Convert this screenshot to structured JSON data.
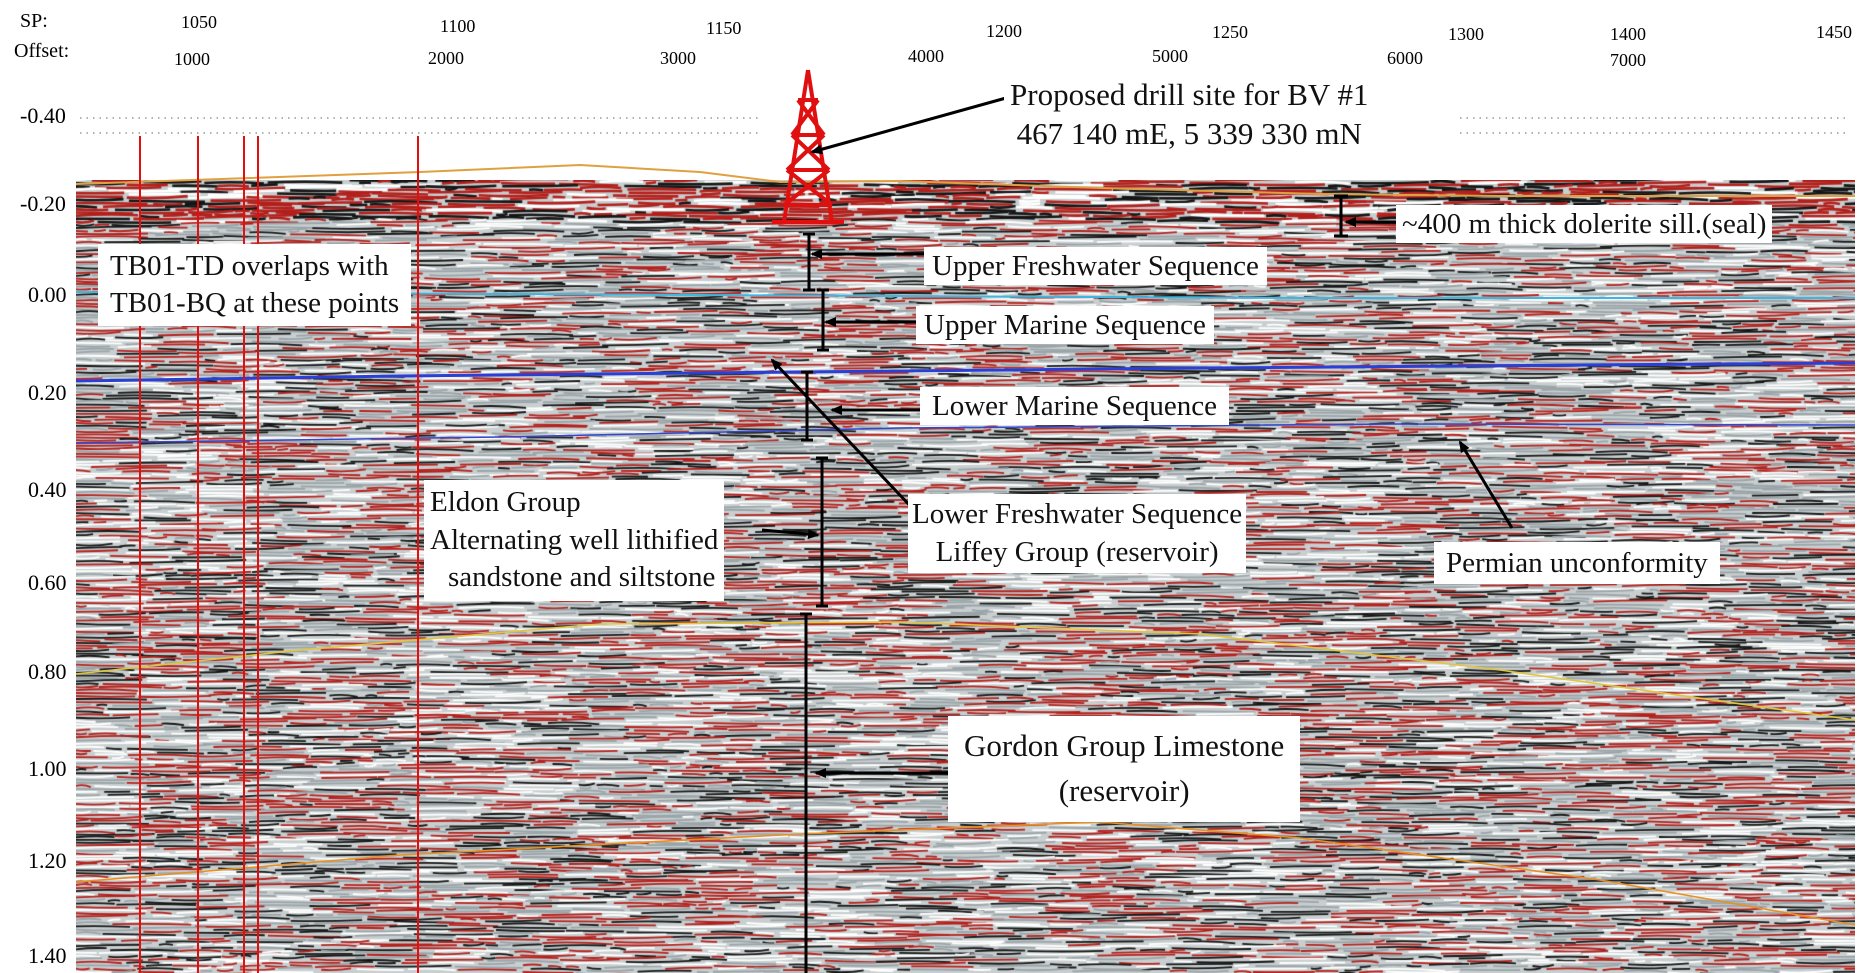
{
  "axis": {
    "sp_label": "SP:",
    "offset_label": "Offset:",
    "sp_ticks": [
      "1050",
      "1100",
      "1150",
      "1200",
      "1250",
      "1300",
      "1400",
      "1450"
    ],
    "offset_ticks": [
      "1000",
      "2000",
      "3000",
      "4000",
      "5000",
      "6000",
      "7000"
    ],
    "time_ticks": [
      "-0.40",
      "-0.20",
      "0.00",
      "0.20",
      "0.40",
      "0.60",
      "0.80",
      "1.00",
      "1.20",
      "1.40"
    ]
  },
  "annotations": {
    "drill_site_line1": "Proposed drill site for BV #1",
    "drill_site_line2": "467 140 mE, 5 339 330 mN",
    "overlap_line1": "TB01-TD overlaps with",
    "overlap_line2": "TB01-BQ at these points",
    "dolerite": "~400 m thick dolerite sill.(seal)",
    "upper_freshwater": "Upper Freshwater Sequence",
    "upper_marine": "Upper Marine Sequence",
    "lower_marine": "Lower Marine Sequence",
    "lower_freshwater_line1": "Lower Freshwater Sequence",
    "lower_freshwater_line2": "Liffey Group (reservoir)",
    "eldon_line1": "Eldon Group",
    "eldon_line2": "Alternating well lithified",
    "eldon_line3": "sandstone and siltstone",
    "permian": "Permian unconformity",
    "gordon_line1": "Gordon Group Limestone",
    "gordon_line2": "(reservoir)"
  },
  "colors": {
    "trace_red": "#b3201c",
    "trace_black": "#151515",
    "trace_grey": "#c9cfd0",
    "horizon_orange": "#e89020",
    "horizon_cyan": "#3fb6e0",
    "horizon_blue": "#2a3fd6",
    "horizon_yellow": "#e2c53a",
    "marker_red": "#e01010"
  }
}
